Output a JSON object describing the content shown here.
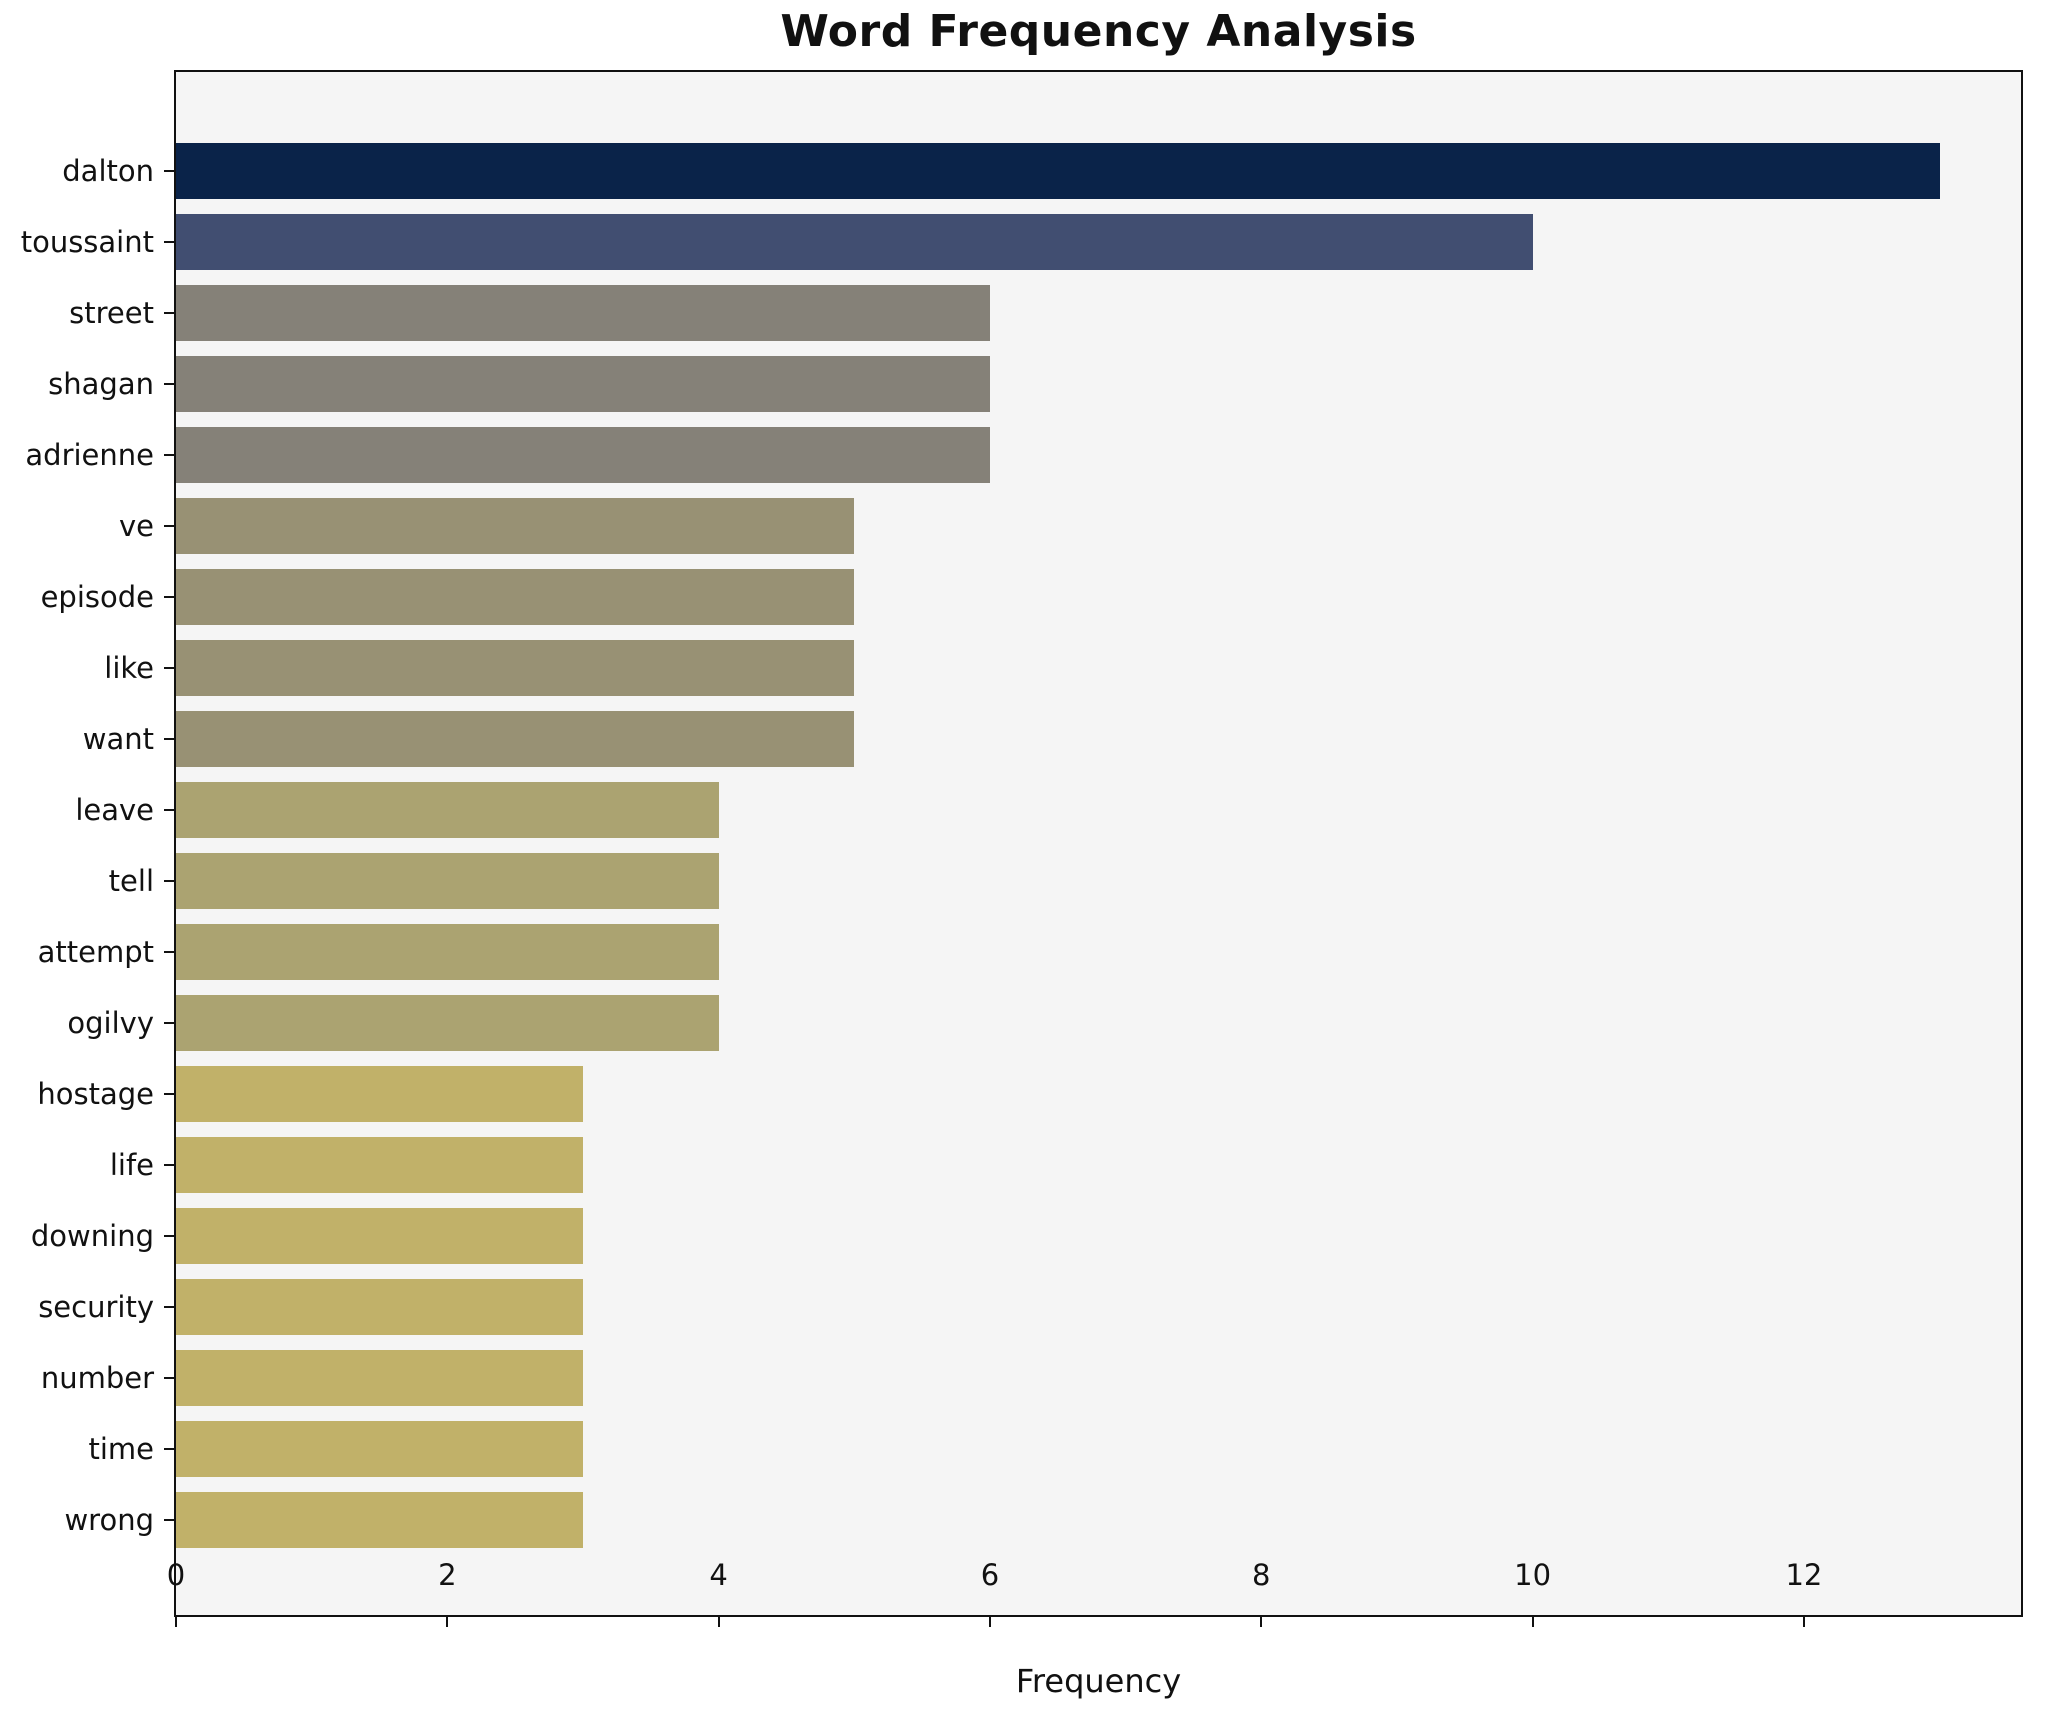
{
  "chart_data": {
    "type": "bar",
    "orientation": "horizontal",
    "title": "Word Frequency Analysis",
    "xlabel": "Frequency",
    "ylabel": "",
    "categories": [
      "dalton",
      "toussaint",
      "street",
      "shagan",
      "adrienne",
      "ve",
      "episode",
      "like",
      "want",
      "leave",
      "tell",
      "attempt",
      "ogilvy",
      "hostage",
      "life",
      "downing",
      "security",
      "number",
      "time",
      "wrong"
    ],
    "values": [
      13,
      10,
      6,
      6,
      6,
      5,
      5,
      5,
      5,
      4,
      4,
      4,
      4,
      3,
      3,
      3,
      3,
      3,
      3,
      3
    ],
    "bar_colors": [
      "#0a2349",
      "#414e71",
      "#858178",
      "#858178",
      "#858178",
      "#989174",
      "#989174",
      "#989174",
      "#989174",
      "#aba371",
      "#aba371",
      "#aba371",
      "#aba371",
      "#c1b169",
      "#c1b169",
      "#c1b169",
      "#c1b169",
      "#c1b169",
      "#c1b169",
      "#c1b169"
    ],
    "xticks": [
      0,
      2,
      4,
      6,
      8,
      10,
      12
    ],
    "xlim": [
      0,
      13.6
    ],
    "grid": false,
    "legend": "none",
    "plot_background": "#f5f5f5",
    "figure_background": "#ffffff",
    "spine_color": "#111111"
  }
}
